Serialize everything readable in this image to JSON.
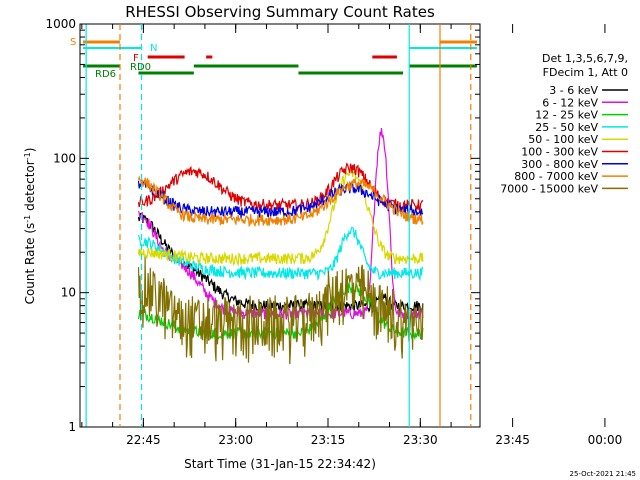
{
  "chart_data": {
    "type": "line",
    "title": "RHESSI Observing Summary Count Rates",
    "xlabel": "Start Time (31-Jan-15 22:34:42)",
    "ylabel_main": "Count Rate (s",
    "ylabel_sup1": "-1",
    "ylabel_mid": " detector",
    "ylabel_sup2": "-1",
    "ylabel_end": ")",
    "y_scale": "log",
    "ylim": [
      1,
      1000
    ],
    "xlim_min_after_start": [
      0,
      65
    ],
    "x_tick_labels": [
      "22:45",
      "23:00",
      "23:15",
      "23:30",
      "23:45",
      "00:00"
    ],
    "x_tick_minutes": [
      10.3,
      25.3,
      40.3,
      55.3,
      70.3,
      85.3
    ],
    "y_tick_labels": [
      "1",
      "10",
      "100",
      "1000"
    ],
    "y_tick_values": [
      1,
      10,
      100,
      1000
    ],
    "legend_header": [
      "Det 1,3,5,6,7,9,",
      "FDecim 1, Att 0"
    ],
    "series": [
      {
        "name": "3 - 6 keV",
        "color": "#000000"
      },
      {
        "name": "6 - 12 keV",
        "color": "#e010e0"
      },
      {
        "name": "12 - 25 keV",
        "color": "#00d000"
      },
      {
        "name": "25 - 50 keV",
        "color": "#00e8e8"
      },
      {
        "name": "50 - 100 keV",
        "color": "#d8d800"
      },
      {
        "name": "100 - 300 keV",
        "color": "#e00000"
      },
      {
        "name": "300 - 800 keV",
        "color": "#0000e0"
      },
      {
        "name": "800 - 7000 keV",
        "color": "#f08000"
      },
      {
        "name": "7000 - 15000 keV",
        "color": "#807000"
      }
    ],
    "flag_labels": {
      "saa": "S",
      "night": "N",
      "flare": "F",
      "rd0": "RD0",
      "rd6": "RD6"
    },
    "timestamp": "25-Oct-2021 21:45"
  }
}
